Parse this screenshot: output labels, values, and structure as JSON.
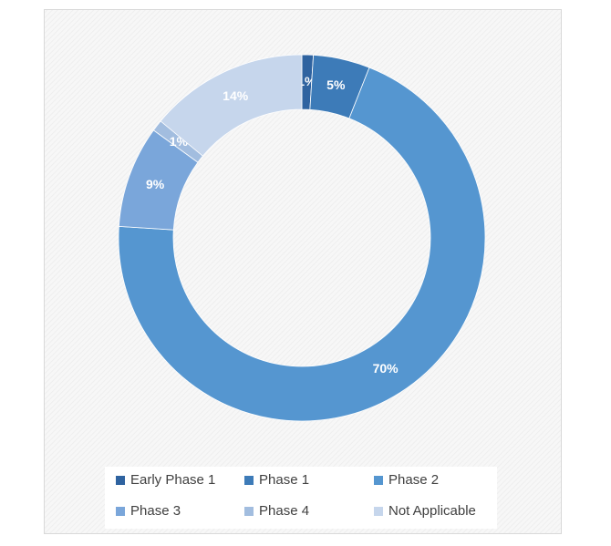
{
  "chart_data": {
    "type": "donut",
    "categories": [
      "Early Phase 1",
      "Phase 1",
      "Phase 2",
      "Phase 3",
      "Phase 4",
      "Not Applicable"
    ],
    "values": [
      1,
      5,
      70,
      9,
      1,
      14
    ],
    "value_labels": [
      "1%",
      "5%",
      "70%",
      "9%",
      "1%",
      "14%"
    ],
    "colors": [
      "#2f63a0",
      "#3d7bb8",
      "#5596d0",
      "#7aa6da",
      "#a2bddf",
      "#c6d6ec"
    ],
    "legend": "bottom"
  }
}
